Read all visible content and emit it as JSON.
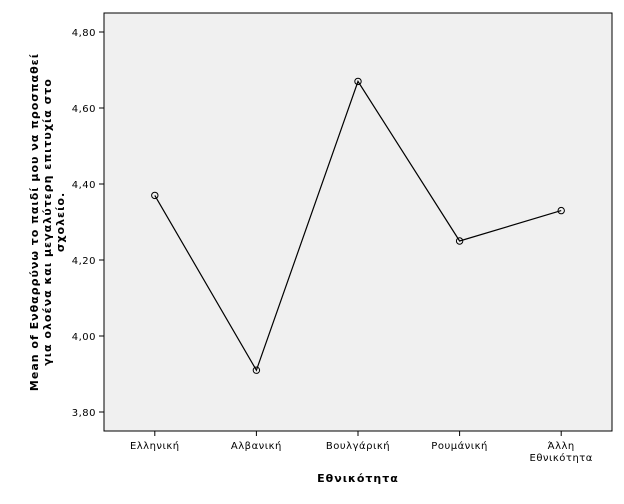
{
  "chart_data": {
    "type": "line",
    "categories": [
      "Ελληνική",
      "Αλβανική",
      "Βουλγάρική",
      "Ρουμάνική",
      "Άλλη Εθνικότητα"
    ],
    "category_lines": [
      [
        "Ελληνική"
      ],
      [
        "Αλβανική"
      ],
      [
        "Βουλγάρική"
      ],
      [
        "Ρουμάνική"
      ],
      [
        "Άλλη",
        "Εθνικότητα"
      ]
    ],
    "values": [
      4.37,
      3.91,
      4.67,
      4.25,
      4.33
    ],
    "ylim": [
      3.75,
      4.85
    ],
    "yticks": [
      3.8,
      4.0,
      4.2,
      4.4,
      4.6,
      4.8
    ],
    "ytick_labels": [
      "3,80",
      "4,00",
      "4,20",
      "4,40",
      "4,60",
      "4,80"
    ],
    "xlabel": "Εθνικότητα",
    "ylabel_lines": [
      "Mean of Ενθαρρύνω το παιδί μου να προσπαθεί",
      "για ολοένα και μεγαλύτερη επιτυχία στο",
      "σχολείο."
    ],
    "grid": false,
    "plot_background": "#f0f0f0",
    "line_color": "#000000"
  }
}
